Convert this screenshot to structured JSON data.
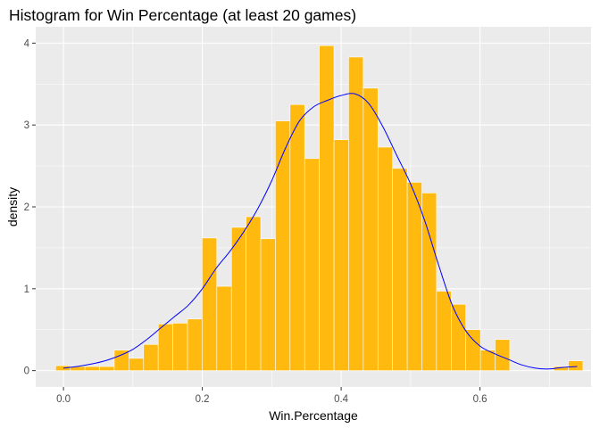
{
  "chart_data": {
    "type": "bar",
    "title": "Histogram for Win Percentage (at least 20 games)",
    "xlabel": "Win.Percentage",
    "ylabel": "density",
    "xlim": [
      -0.04,
      0.76
    ],
    "ylim": [
      -0.2,
      4.2
    ],
    "x_ticks": [
      0.0,
      0.2,
      0.4,
      0.6
    ],
    "x_tick_labels": [
      "0.0",
      "0.2",
      "0.4",
      "0.6"
    ],
    "y_ticks": [
      0,
      1,
      2,
      3,
      4
    ],
    "y_tick_labels": [
      "0",
      "1",
      "2",
      "3",
      "4"
    ],
    "grid": true,
    "bin_width": 0.0211,
    "bins": [
      {
        "x": -0.0007,
        "y": 0.06
      },
      {
        "x": 0.0204,
        "y": 0.05
      },
      {
        "x": 0.0415,
        "y": 0.05
      },
      {
        "x": 0.0626,
        "y": 0.05
      },
      {
        "x": 0.0837,
        "y": 0.25
      },
      {
        "x": 0.1048,
        "y": 0.15
      },
      {
        "x": 0.1259,
        "y": 0.32
      },
      {
        "x": 0.147,
        "y": 0.57
      },
      {
        "x": 0.1681,
        "y": 0.58
      },
      {
        "x": 0.1892,
        "y": 0.63
      },
      {
        "x": 0.2103,
        "y": 1.62
      },
      {
        "x": 0.2314,
        "y": 1.03
      },
      {
        "x": 0.2525,
        "y": 1.75
      },
      {
        "x": 0.2736,
        "y": 1.88
      },
      {
        "x": 0.2947,
        "y": 1.61
      },
      {
        "x": 0.3158,
        "y": 3.05
      },
      {
        "x": 0.3369,
        "y": 3.25
      },
      {
        "x": 0.358,
        "y": 2.59
      },
      {
        "x": 0.3791,
        "y": 3.97
      },
      {
        "x": 0.4002,
        "y": 2.82
      },
      {
        "x": 0.4213,
        "y": 3.83
      },
      {
        "x": 0.4424,
        "y": 3.45
      },
      {
        "x": 0.4635,
        "y": 2.73
      },
      {
        "x": 0.4846,
        "y": 2.47
      },
      {
        "x": 0.5057,
        "y": 2.3
      },
      {
        "x": 0.5268,
        "y": 2.17
      },
      {
        "x": 0.5479,
        "y": 0.97
      },
      {
        "x": 0.569,
        "y": 0.81
      },
      {
        "x": 0.5901,
        "y": 0.5
      },
      {
        "x": 0.6112,
        "y": 0.25
      },
      {
        "x": 0.6323,
        "y": 0.38
      },
      {
        "x": 0.6534,
        "y": 0.0
      },
      {
        "x": 0.6745,
        "y": 0.0
      },
      {
        "x": 0.6956,
        "y": 0.0
      },
      {
        "x": 0.7167,
        "y": 0.05
      },
      {
        "x": 0.7378,
        "y": 0.12
      }
    ],
    "density_curve": [
      [
        0.0,
        0.03
      ],
      [
        0.02,
        0.05
      ],
      [
        0.04,
        0.08
      ],
      [
        0.06,
        0.12
      ],
      [
        0.08,
        0.18
      ],
      [
        0.1,
        0.26
      ],
      [
        0.12,
        0.38
      ],
      [
        0.14,
        0.52
      ],
      [
        0.16,
        0.66
      ],
      [
        0.18,
        0.8
      ],
      [
        0.2,
        1.0
      ],
      [
        0.22,
        1.25
      ],
      [
        0.24,
        1.46
      ],
      [
        0.26,
        1.7
      ],
      [
        0.28,
        1.98
      ],
      [
        0.3,
        2.32
      ],
      [
        0.32,
        2.72
      ],
      [
        0.34,
        3.05
      ],
      [
        0.36,
        3.22
      ],
      [
        0.38,
        3.3
      ],
      [
        0.4,
        3.36
      ],
      [
        0.42,
        3.38
      ],
      [
        0.44,
        3.26
      ],
      [
        0.46,
        2.98
      ],
      [
        0.48,
        2.63
      ],
      [
        0.5,
        2.28
      ],
      [
        0.52,
        1.84
      ],
      [
        0.54,
        1.3
      ],
      [
        0.56,
        0.8
      ],
      [
        0.58,
        0.48
      ],
      [
        0.6,
        0.3
      ],
      [
        0.62,
        0.21
      ],
      [
        0.64,
        0.14
      ],
      [
        0.66,
        0.07
      ],
      [
        0.68,
        0.03
      ],
      [
        0.7,
        0.02
      ],
      [
        0.72,
        0.04
      ],
      [
        0.74,
        0.05
      ]
    ],
    "colors": {
      "panel_bg": "#ebebeb",
      "grid": "#ffffff",
      "bar_fill": "#ffb90f",
      "bar_outline": "#ffffff",
      "curve": "#0000ff"
    }
  }
}
